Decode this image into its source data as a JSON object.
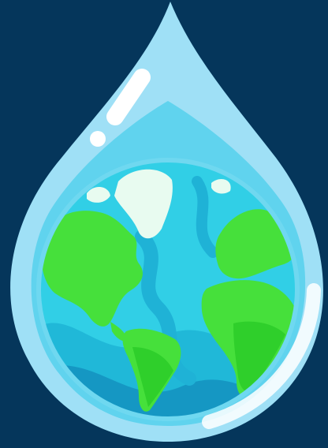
{
  "illustration": {
    "subject": "water-drop-globe",
    "colors": {
      "background": "#05365b",
      "drop_outer": "#9fe0f6",
      "drop_inner": "#60d3ee",
      "ocean_light": "#31cfe6",
      "ocean_mid": "#20b8d8",
      "ocean_dark": "#1597c3",
      "land": "#46e03b",
      "land_dark": "#2fcf2b",
      "ice": "#e8fbf0",
      "highlight": "#ffffff"
    }
  }
}
